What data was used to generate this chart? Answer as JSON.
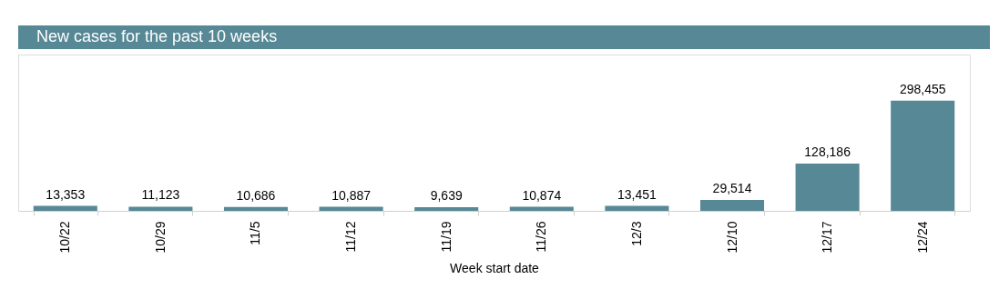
{
  "chart_data": {
    "type": "bar",
    "title": "New cases for the past 10 weeks",
    "xlabel": "Week start date",
    "categories": [
      "10/22",
      "10/29",
      "11/5",
      "11/12",
      "11/19",
      "11/26",
      "12/3",
      "12/10",
      "12/17",
      "12/24"
    ],
    "values": [
      13353,
      11123,
      10686,
      10887,
      9639,
      10874,
      13451,
      29514,
      128186,
      298455
    ],
    "value_labels": [
      "13,353",
      "11,123",
      "10,686",
      "10,887",
      "9,639",
      "10,874",
      "13,451",
      "29,514",
      "128,186",
      "298,455"
    ],
    "color": "#568896"
  }
}
